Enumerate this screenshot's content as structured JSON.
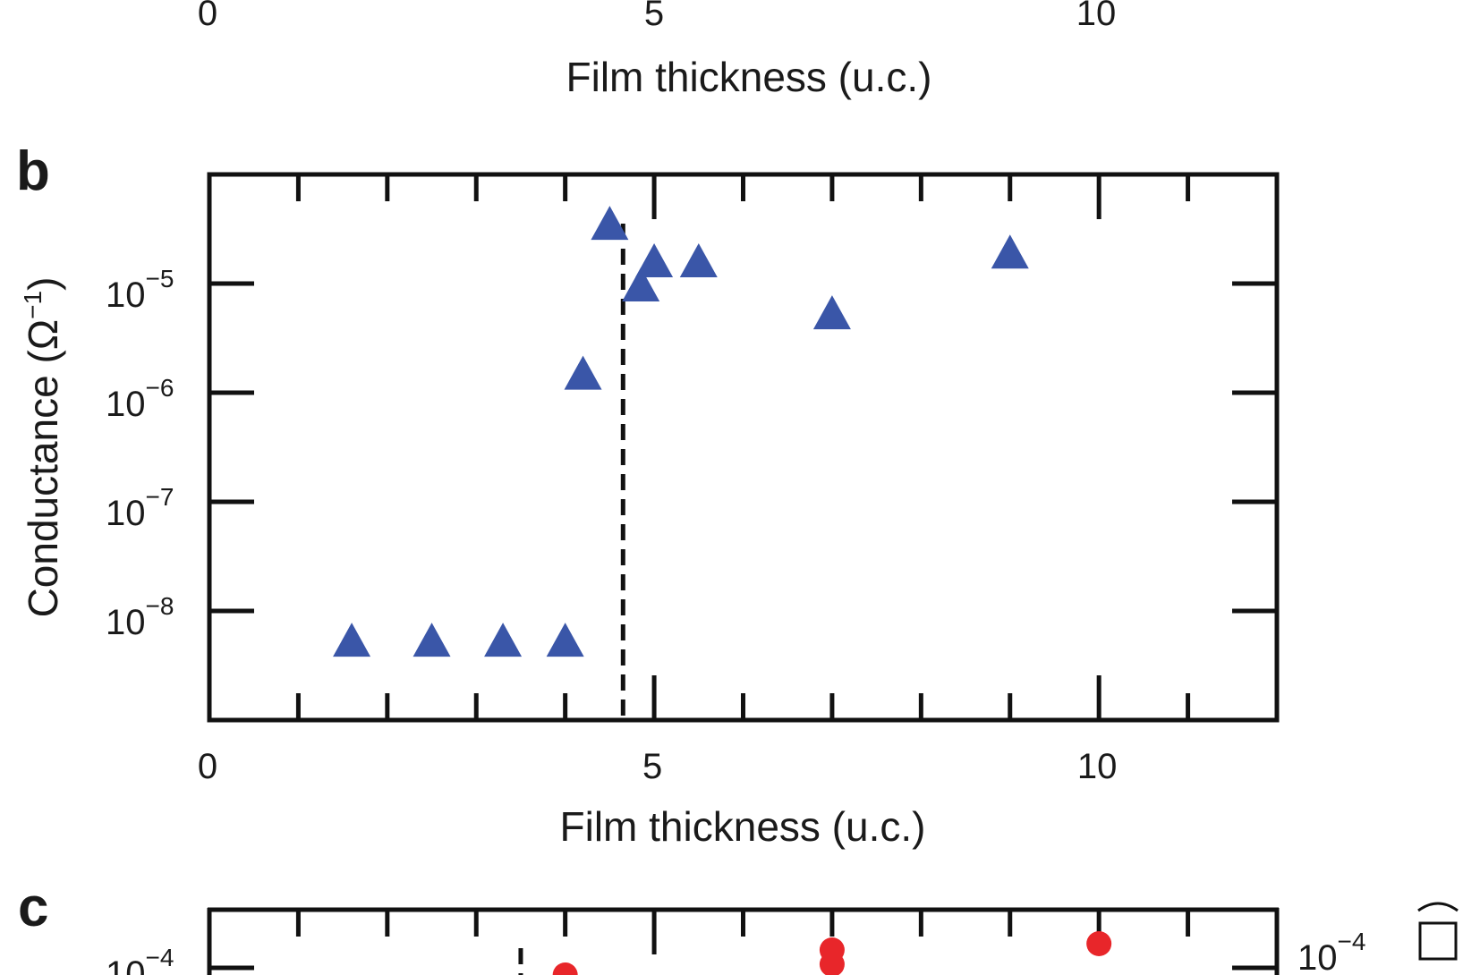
{
  "panel_a_partial": {
    "x_ticks": [
      "0",
      "5",
      "10"
    ],
    "xlabel": "Film thickness (u.c.)"
  },
  "panel_c_partial": {
    "letter": "c",
    "left_tick": "10",
    "left_tick_exp": "−4",
    "right_tick": "10",
    "right_tick_exp": "−4",
    "colors": {
      "points": "#e8262a"
    },
    "points_x": [
      4.0,
      7.0,
      10.0
    ],
    "threshold_x": 3.5
  },
  "chart_data": {
    "type": "scatter",
    "panel": "b",
    "xlabel": "Film thickness (u.c.)",
    "ylabel": "Conductance (Ω",
    "ylabel_exp": "−1",
    "ylabel_close": ")",
    "xlim": [
      0,
      12
    ],
    "ylim": [
      1e-09,
      0.0001
    ],
    "yscale": "log",
    "x_ticks": [
      {
        "value": 0,
        "label": "0"
      },
      {
        "value": 5,
        "label": "5"
      },
      {
        "value": 10,
        "label": "10"
      }
    ],
    "y_ticks": [
      {
        "value": 1e-05,
        "base": "10",
        "exp": "−5"
      },
      {
        "value": 1e-06,
        "base": "10",
        "exp": "−6"
      },
      {
        "value": 1e-07,
        "base": "10",
        "exp": "−7"
      },
      {
        "value": 1e-08,
        "base": "10",
        "exp": "−8"
      }
    ],
    "marker_color": "#3a56a8",
    "marker": "triangle",
    "threshold_x": 4.65,
    "grid": false,
    "series": [
      {
        "points": [
          {
            "x": 1.6,
            "y": 5e-09
          },
          {
            "x": 2.5,
            "y": 5e-09
          },
          {
            "x": 3.3,
            "y": 5e-09
          },
          {
            "x": 4.0,
            "y": 5e-09
          },
          {
            "x": 4.2,
            "y": 1.4e-06
          },
          {
            "x": 4.5,
            "y": 3.3e-05
          },
          {
            "x": 4.85,
            "y": 9e-06
          },
          {
            "x": 5.0,
            "y": 1.5e-05
          },
          {
            "x": 5.5,
            "y": 1.5e-05
          },
          {
            "x": 7.0,
            "y": 5e-06
          },
          {
            "x": 9.0,
            "y": 1.8e-05
          }
        ]
      }
    ]
  }
}
